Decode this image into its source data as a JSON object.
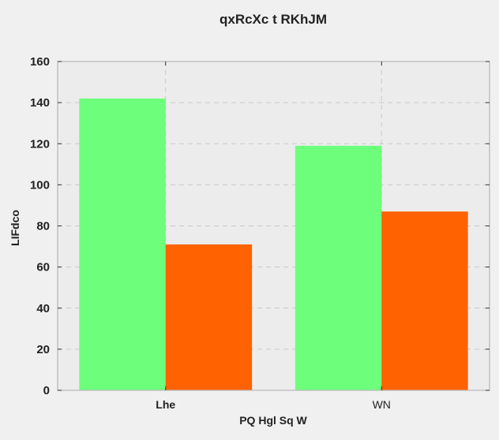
{
  "chart_data": {
    "type": "bar",
    "title": "qxRcXc t RKhJM",
    "xlabel": "PQ Hgl  Sq W",
    "ylabel": "LIFdco",
    "categories": [
      "Lhe",
      "WN"
    ],
    "category_label_bold": [
      true,
      false
    ],
    "series": [
      {
        "values": [
          142,
          119
        ],
        "color": "#6dfe7c"
      },
      {
        "values": [
          71,
          87
        ],
        "color": "#ff6200"
      }
    ],
    "ylim": [
      0,
      160
    ],
    "yticks": [
      0,
      20,
      40,
      60,
      80,
      100,
      120,
      140,
      160
    ],
    "grid": true,
    "legend": "none",
    "plot_background": "#ececec",
    "page_background": "#f0f0f0"
  }
}
